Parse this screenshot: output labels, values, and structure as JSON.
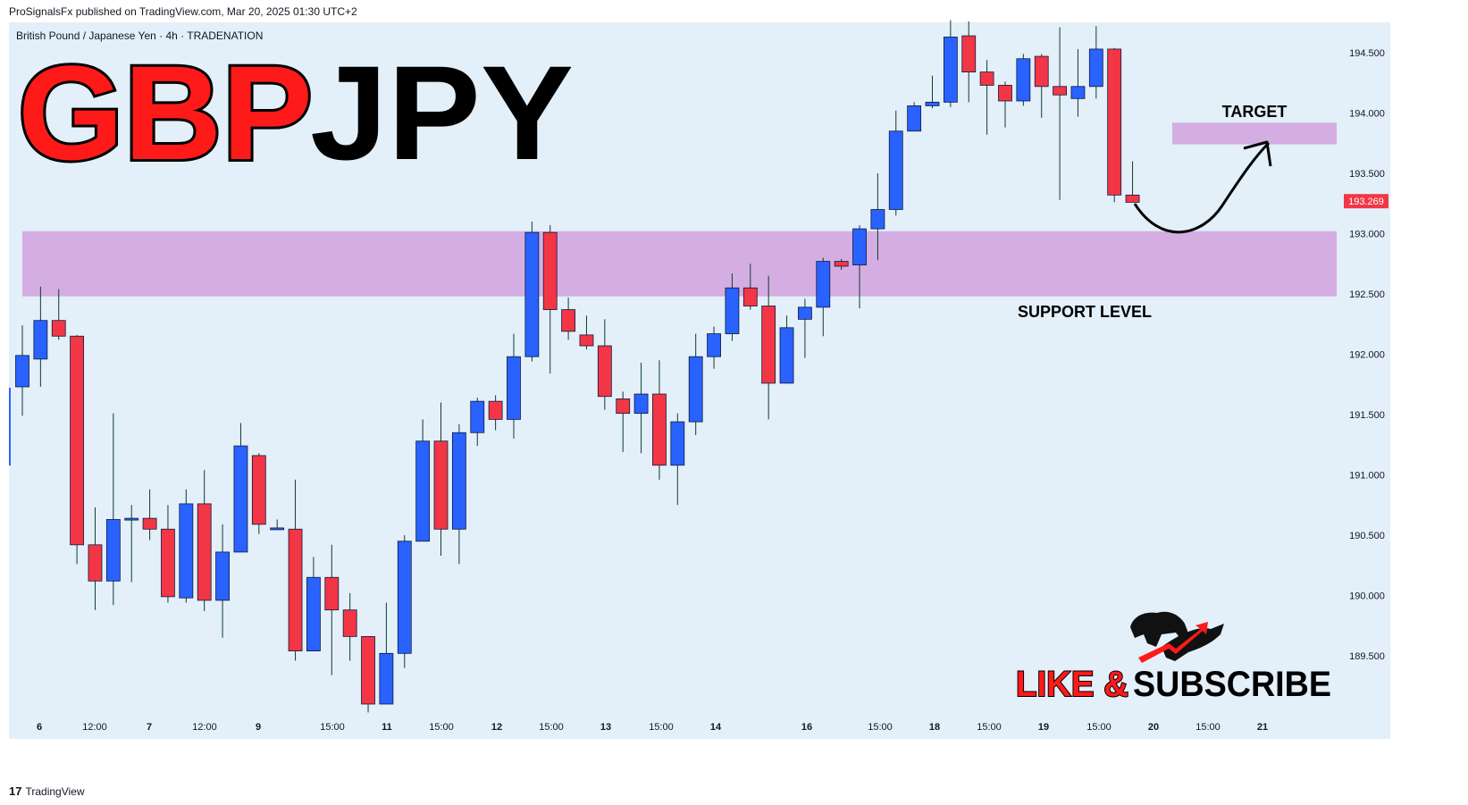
{
  "header": {
    "published": "ProSignalsFx published on TradingView.com, Mar 20, 2025 01:30 UTC+2"
  },
  "footer": {
    "brand": "TradingView",
    "logo_glyph": "17"
  },
  "colors": {
    "background": "#e3eff9",
    "up": "#2962ff",
    "down": "#f23645",
    "zone": "#ce93d8",
    "title_red": "#ff1a1a",
    "title_black": "#000000"
  },
  "chart_data": {
    "type": "candlestick",
    "symbol_line": "British Pound / Japanese Yen · 4h · TRADENATION",
    "title_part1": "GBP",
    "title_part2": "JPY",
    "x_tick_labels": [
      "6",
      "12:00",
      "7",
      "12:00",
      "9",
      "15:00",
      "11",
      "15:00",
      "12",
      "15:00",
      "13",
      "15:00",
      "14",
      "16",
      "15:00",
      "18",
      "15:00",
      "19",
      "15:00",
      "20",
      "15:00",
      "21"
    ],
    "y_tick_labels": [
      "194.500",
      "194.000",
      "193.500",
      "193.000",
      "192.500",
      "192.000",
      "191.500",
      "191.000",
      "190.500",
      "190.000",
      "189.500"
    ],
    "ylim": [
      189.05,
      194.78
    ],
    "last_price_label": "193.269",
    "support_zone": {
      "low": 192.48,
      "high": 193.02,
      "label": "SUPPORT LEVEL"
    },
    "target_zone": {
      "low": 193.74,
      "high": 193.92,
      "label": "TARGET"
    },
    "candles": [
      {
        "o": 191.73,
        "h": 192.24,
        "l": 191.49,
        "c": 191.99
      },
      {
        "o": 191.96,
        "h": 192.56,
        "l": 191.73,
        "c": 192.28
      },
      {
        "o": 192.28,
        "h": 192.54,
        "l": 192.12,
        "c": 192.15
      },
      {
        "o": 192.15,
        "h": 192.16,
        "l": 190.26,
        "c": 190.42
      },
      {
        "o": 190.42,
        "h": 190.73,
        "l": 189.88,
        "c": 190.12
      },
      {
        "o": 190.12,
        "h": 191.51,
        "l": 189.92,
        "c": 190.63
      },
      {
        "o": 190.64,
        "h": 190.75,
        "l": 190.11,
        "c": 190.64
      },
      {
        "o": 190.64,
        "h": 190.88,
        "l": 190.46,
        "c": 190.55
      },
      {
        "o": 190.55,
        "h": 190.75,
        "l": 189.94,
        "c": 189.99
      },
      {
        "o": 189.98,
        "h": 190.88,
        "l": 189.94,
        "c": 190.76
      },
      {
        "o": 190.76,
        "h": 191.04,
        "l": 189.87,
        "c": 189.96
      },
      {
        "o": 189.96,
        "h": 190.59,
        "l": 189.65,
        "c": 190.36
      },
      {
        "o": 190.36,
        "h": 191.43,
        "l": 190.36,
        "c": 191.24
      },
      {
        "o": 191.16,
        "h": 191.18,
        "l": 190.51,
        "c": 190.59
      },
      {
        "o": 190.56,
        "h": 190.63,
        "l": 190.55,
        "c": 190.56
      },
      {
        "o": 190.55,
        "h": 190.96,
        "l": 189.46,
        "c": 189.54
      },
      {
        "o": 189.54,
        "h": 190.32,
        "l": 189.54,
        "c": 190.15
      },
      {
        "o": 190.15,
        "h": 190.42,
        "l": 189.34,
        "c": 189.88
      },
      {
        "o": 189.88,
        "h": 190.02,
        "l": 189.46,
        "c": 189.66
      },
      {
        "o": 189.66,
        "h": 189.66,
        "l": 189.03,
        "c": 189.1
      },
      {
        "o": 189.1,
        "h": 189.94,
        "l": 189.1,
        "c": 189.52
      },
      {
        "o": 189.52,
        "h": 190.5,
        "l": 189.4,
        "c": 190.45
      },
      {
        "o": 190.45,
        "h": 191.46,
        "l": 190.45,
        "c": 191.28
      },
      {
        "o": 191.28,
        "h": 191.6,
        "l": 190.33,
        "c": 190.55
      },
      {
        "o": 190.55,
        "h": 191.42,
        "l": 190.26,
        "c": 191.35
      },
      {
        "o": 191.35,
        "h": 191.64,
        "l": 191.24,
        "c": 191.61
      },
      {
        "o": 191.61,
        "h": 191.66,
        "l": 191.37,
        "c": 191.46
      },
      {
        "o": 191.46,
        "h": 192.17,
        "l": 191.3,
        "c": 191.98
      },
      {
        "o": 191.98,
        "h": 193.1,
        "l": 191.94,
        "c": 193.01
      },
      {
        "o": 193.01,
        "h": 193.07,
        "l": 191.84,
        "c": 192.37
      },
      {
        "o": 192.37,
        "h": 192.47,
        "l": 192.12,
        "c": 192.19
      },
      {
        "o": 192.16,
        "h": 192.32,
        "l": 192.04,
        "c": 192.07
      },
      {
        "o": 192.07,
        "h": 192.29,
        "l": 191.54,
        "c": 191.65
      },
      {
        "o": 191.63,
        "h": 191.69,
        "l": 191.19,
        "c": 191.51
      },
      {
        "o": 191.51,
        "h": 191.93,
        "l": 191.18,
        "c": 191.67
      },
      {
        "o": 191.67,
        "h": 191.95,
        "l": 190.96,
        "c": 191.08
      },
      {
        "o": 191.08,
        "h": 191.51,
        "l": 190.75,
        "c": 191.44
      },
      {
        "o": 191.44,
        "h": 192.17,
        "l": 191.33,
        "c": 191.98
      },
      {
        "o": 191.98,
        "h": 192.23,
        "l": 191.88,
        "c": 192.17
      },
      {
        "o": 192.17,
        "h": 192.67,
        "l": 192.11,
        "c": 192.55
      },
      {
        "o": 192.55,
        "h": 192.75,
        "l": 192.37,
        "c": 192.4
      },
      {
        "o": 192.4,
        "h": 192.65,
        "l": 191.46,
        "c": 191.76
      },
      {
        "o": 191.76,
        "h": 192.32,
        "l": 191.76,
        "c": 192.22
      },
      {
        "o": 192.29,
        "h": 192.46,
        "l": 191.97,
        "c": 192.39
      },
      {
        "o": 192.39,
        "h": 192.8,
        "l": 192.15,
        "c": 192.77
      },
      {
        "o": 192.77,
        "h": 192.79,
        "l": 192.7,
        "c": 192.73
      },
      {
        "o": 192.74,
        "h": 193.07,
        "l": 192.38,
        "c": 193.04
      },
      {
        "o": 193.04,
        "h": 193.5,
        "l": 192.78,
        "c": 193.2
      },
      {
        "o": 193.2,
        "h": 194.02,
        "l": 193.15,
        "c": 193.85
      },
      {
        "o": 193.85,
        "h": 194.09,
        "l": 193.86,
        "c": 194.06
      },
      {
        "o": 194.06,
        "h": 194.31,
        "l": 194.04,
        "c": 194.09
      },
      {
        "o": 194.09,
        "h": 194.77,
        "l": 194.05,
        "c": 194.63
      },
      {
        "o": 194.64,
        "h": 194.76,
        "l": 194.09,
        "c": 194.34
      },
      {
        "o": 194.34,
        "h": 194.44,
        "l": 193.82,
        "c": 194.23
      },
      {
        "o": 194.23,
        "h": 194.26,
        "l": 193.88,
        "c": 194.1
      },
      {
        "o": 194.1,
        "h": 194.49,
        "l": 194.06,
        "c": 194.45
      },
      {
        "o": 194.47,
        "h": 194.49,
        "l": 193.96,
        "c": 194.22
      },
      {
        "o": 194.22,
        "h": 194.71,
        "l": 193.28,
        "c": 194.15
      },
      {
        "o": 194.12,
        "h": 194.53,
        "l": 193.97,
        "c": 194.22
      },
      {
        "o": 194.22,
        "h": 194.72,
        "l": 194.12,
        "c": 194.53
      },
      {
        "o": 194.53,
        "h": 194.54,
        "l": 193.26,
        "c": 193.32
      },
      {
        "o": 193.32,
        "h": 193.6,
        "l": 193.26,
        "c": 193.26
      }
    ]
  },
  "promo": {
    "like": "LIKE &",
    "subscribe": "SUBSCRIBE"
  }
}
